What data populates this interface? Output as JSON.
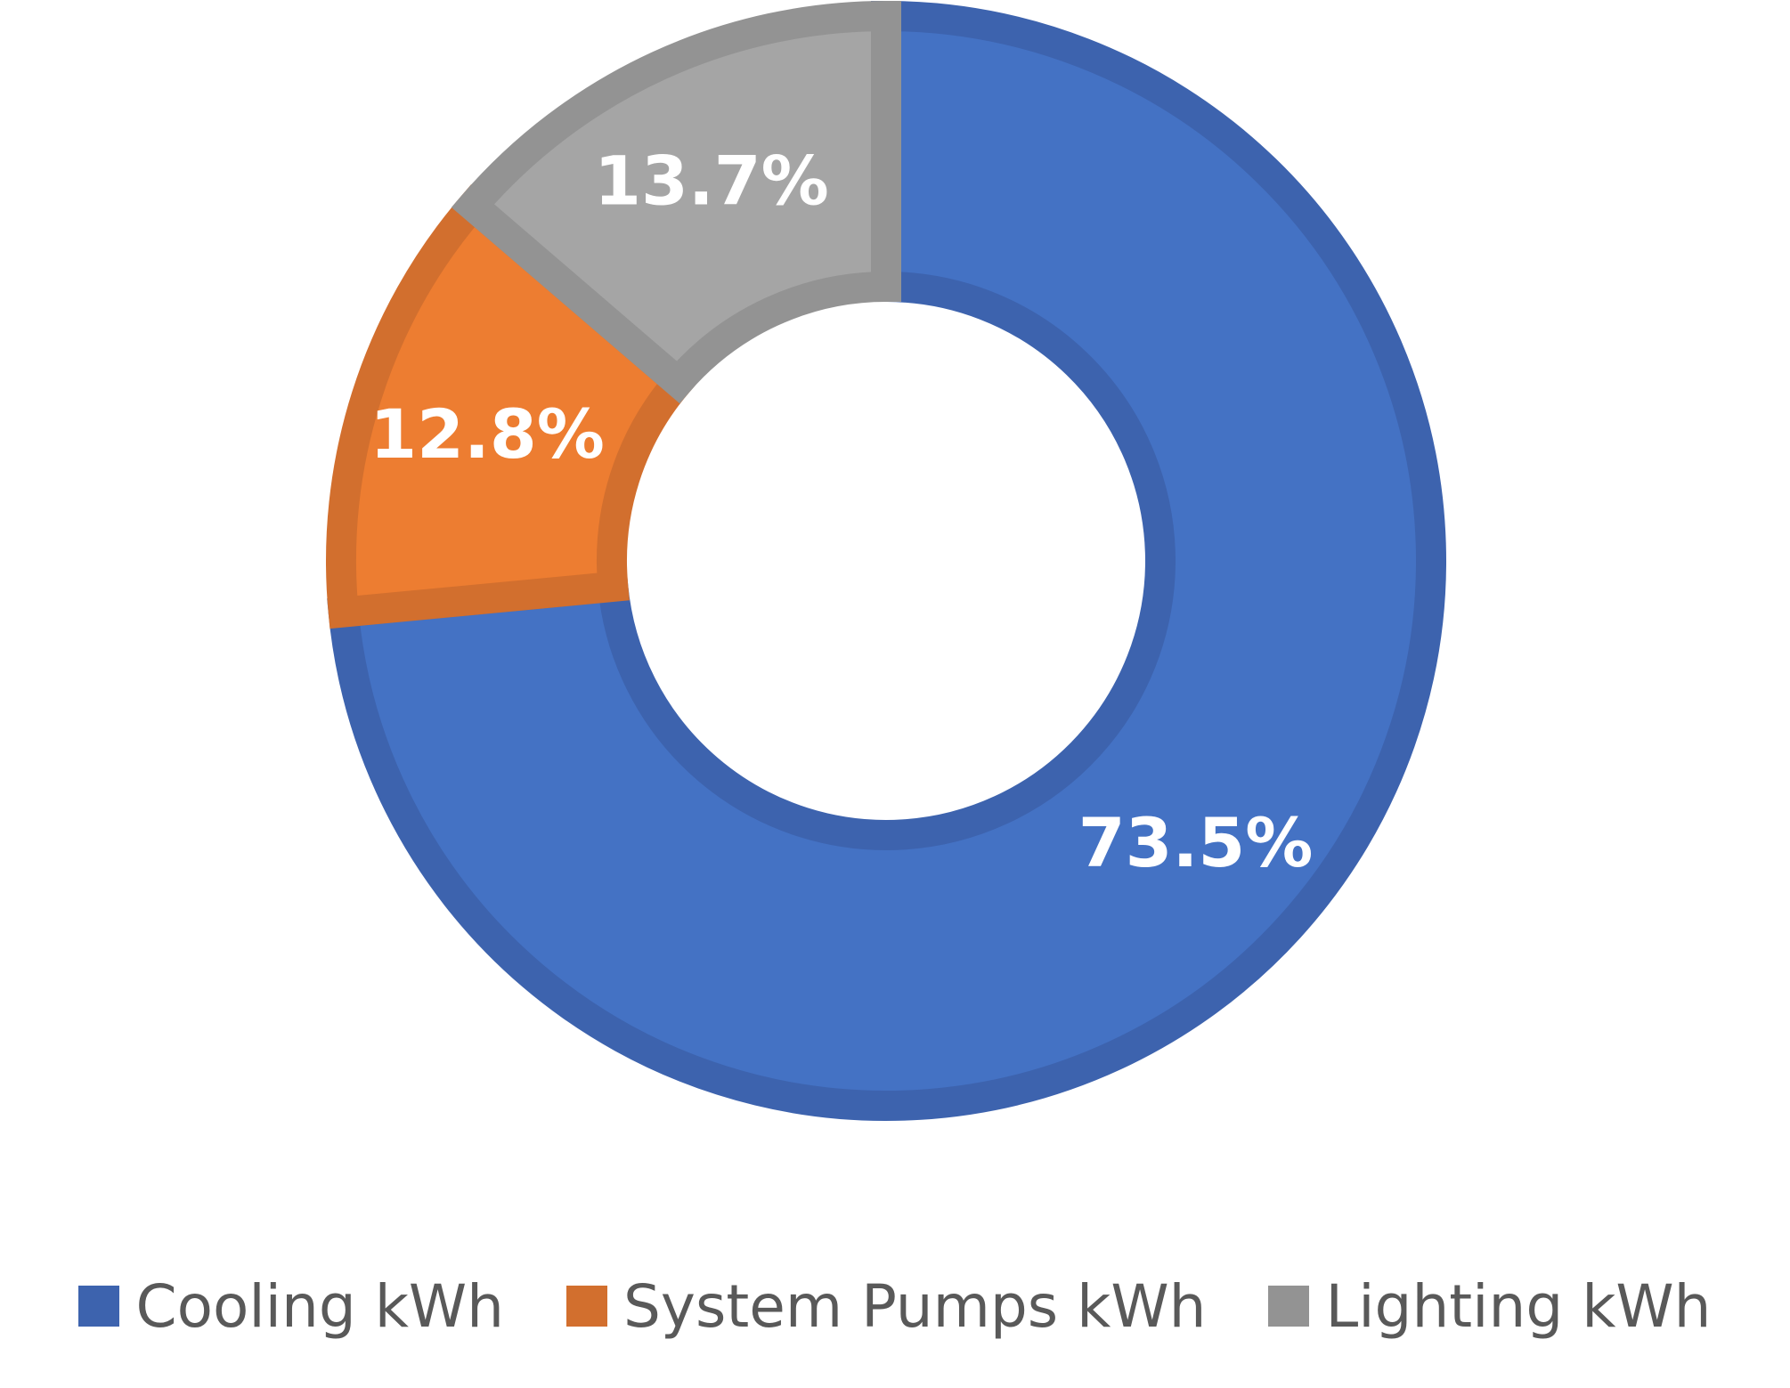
{
  "chart_data": {
    "type": "pie",
    "variant": "donut",
    "title": "",
    "series": [
      {
        "name": "Cooling kWh",
        "value": 73.5,
        "label": "73.5%",
        "color": "#4472C4",
        "stroke": "#3D63AE"
      },
      {
        "name": "System Pumps kWh",
        "value": 12.8,
        "label": "12.8%",
        "color": "#ED7D31",
        "stroke": "#D26F2E"
      },
      {
        "name": "Lighting kWh",
        "value": 13.7,
        "label": "13.7%",
        "color": "#A5A5A5",
        "stroke": "#939393"
      }
    ],
    "legend_position": "bottom",
    "start_angle_deg": 0,
    "direction": "clockwise"
  }
}
